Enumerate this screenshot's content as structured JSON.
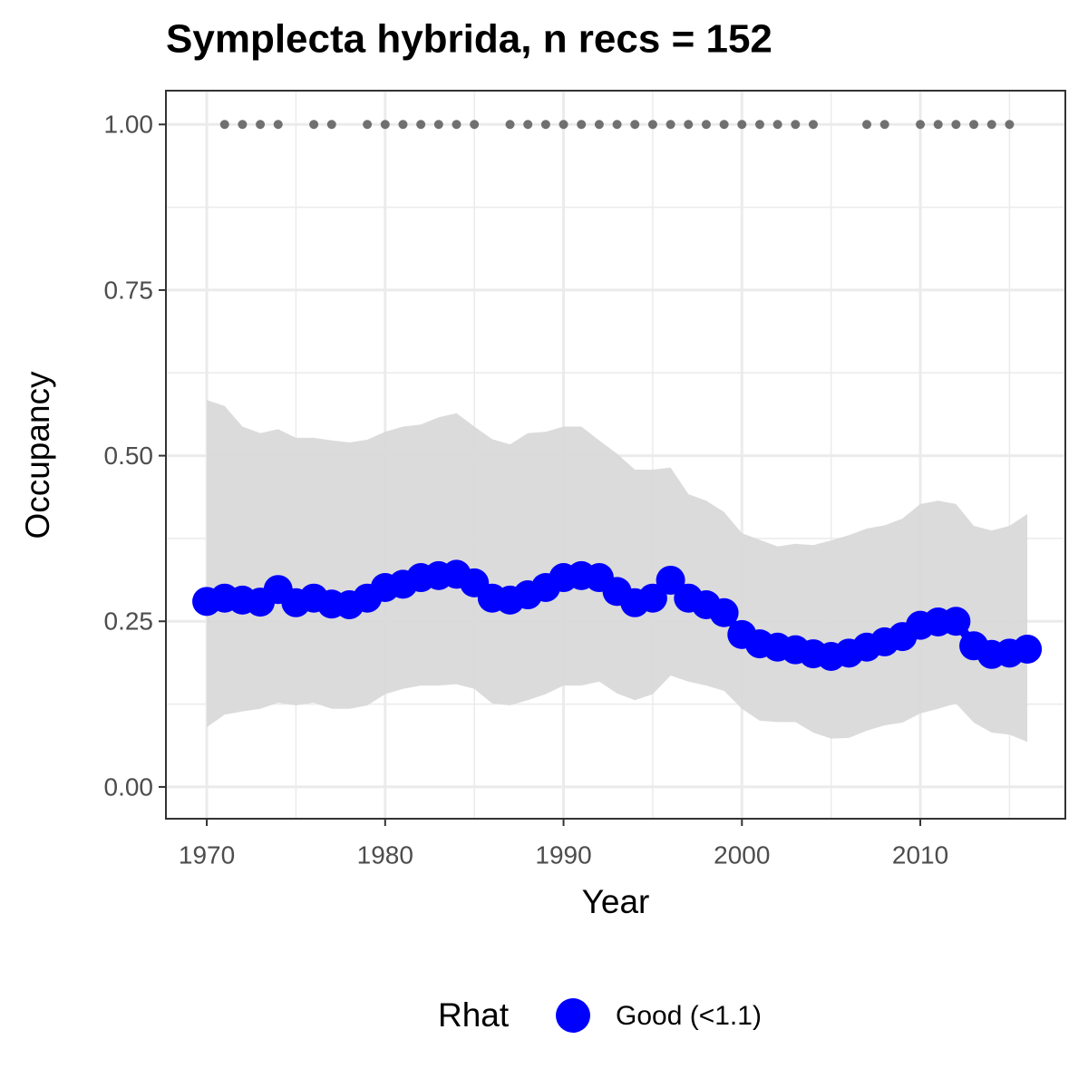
{
  "chart_data": {
    "type": "line",
    "title": "Symplecta hybrida, n recs = 152",
    "x_label": "Year",
    "y_label": "Occupancy",
    "x": [
      1970,
      1971,
      1972,
      1973,
      1974,
      1975,
      1976,
      1977,
      1978,
      1979,
      1980,
      1981,
      1982,
      1983,
      1984,
      1985,
      1986,
      1987,
      1988,
      1989,
      1990,
      1991,
      1992,
      1993,
      1994,
      1995,
      1996,
      1997,
      1998,
      1999,
      2000,
      2001,
      2002,
      2003,
      2004,
      2005,
      2006,
      2007,
      2008,
      2009,
      2010,
      2011,
      2012,
      2013,
      2014,
      2015,
      2016
    ],
    "series": [
      {
        "name": "Good (<1.1)",
        "color": "#0000ff",
        "values": [
          0.28,
          0.285,
          0.282,
          0.279,
          0.298,
          0.278,
          0.285,
          0.276,
          0.275,
          0.285,
          0.301,
          0.306,
          0.316,
          0.319,
          0.321,
          0.308,
          0.285,
          0.282,
          0.29,
          0.301,
          0.316,
          0.319,
          0.316,
          0.295,
          0.278,
          0.285,
          0.312,
          0.285,
          0.275,
          0.263,
          0.23,
          0.216,
          0.211,
          0.207,
          0.201,
          0.197,
          0.202,
          0.211,
          0.219,
          0.227,
          0.244,
          0.249,
          0.25,
          0.213,
          0.2,
          0.202,
          0.208
        ]
      }
    ],
    "band": {
      "color": "#d9d9d9",
      "lower": [
        0.09,
        0.109,
        0.114,
        0.118,
        0.127,
        0.123,
        0.127,
        0.118,
        0.118,
        0.123,
        0.14,
        0.148,
        0.153,
        0.153,
        0.155,
        0.148,
        0.126,
        0.123,
        0.131,
        0.14,
        0.153,
        0.153,
        0.159,
        0.141,
        0.131,
        0.14,
        0.168,
        0.159,
        0.153,
        0.145,
        0.118,
        0.1,
        0.098,
        0.098,
        0.082,
        0.073,
        0.074,
        0.085,
        0.093,
        0.097,
        0.111,
        0.118,
        0.126,
        0.097,
        0.082,
        0.079,
        0.068
      ],
      "upper": [
        0.584,
        0.575,
        0.544,
        0.534,
        0.54,
        0.527,
        0.527,
        0.523,
        0.52,
        0.524,
        0.536,
        0.544,
        0.547,
        0.558,
        0.564,
        0.544,
        0.525,
        0.517,
        0.534,
        0.536,
        0.544,
        0.544,
        0.523,
        0.503,
        0.479,
        0.479,
        0.482,
        0.442,
        0.432,
        0.415,
        0.383,
        0.373,
        0.363,
        0.367,
        0.365,
        0.372,
        0.38,
        0.39,
        0.395,
        0.405,
        0.427,
        0.432,
        0.427,
        0.394,
        0.387,
        0.394,
        0.412
      ]
    },
    "records": {
      "color": "#707070",
      "x": [
        1971,
        1972,
        1973,
        1974,
        1976,
        1977,
        1979,
        1980,
        1981,
        1982,
        1983,
        1984,
        1985,
        1987,
        1988,
        1989,
        1990,
        1991,
        1992,
        1993,
        1994,
        1995,
        1996,
        1997,
        1998,
        1999,
        2000,
        2001,
        2002,
        2003,
        2004,
        2007,
        2008,
        2010,
        2011,
        2012,
        2013,
        2014,
        2015
      ],
      "values": [
        1,
        1,
        1,
        1,
        1,
        1,
        1,
        1,
        1,
        1,
        1,
        1,
        1,
        1,
        1,
        1,
        1,
        1,
        1,
        1,
        1,
        1,
        1,
        1,
        1,
        1,
        1,
        1,
        1,
        1,
        1,
        1,
        1,
        1,
        1,
        1,
        1,
        1,
        1
      ]
    },
    "xlim": [
      1967.71,
      2018.13
    ],
    "ylim": [
      -0.048,
      1.051
    ],
    "xticks": [
      1970,
      1980,
      1990,
      2000,
      2010
    ],
    "yticks": [
      {
        "value": 0,
        "label": "0.00"
      },
      {
        "value": 0.25,
        "label": "0.25"
      },
      {
        "value": 0.5,
        "label": "0.50"
      },
      {
        "value": 0.75,
        "label": "0.75"
      },
      {
        "value": 1,
        "label": "1.00"
      }
    ],
    "minor_xticks": [
      1975,
      1985,
      1995,
      2005,
      2015
    ],
    "minor_yticks": [
      0.125,
      0.375,
      0.625,
      0.875
    ],
    "grid": true,
    "legend_title": "Rhat",
    "legend_position": "bottom"
  }
}
